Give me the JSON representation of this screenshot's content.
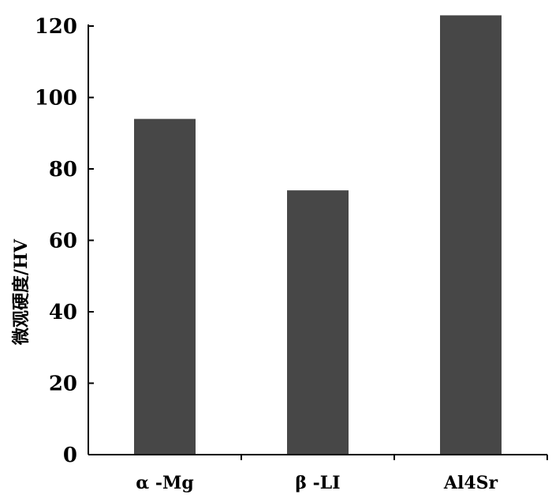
{
  "chart_data": {
    "type": "bar",
    "title": "",
    "xlabel": "",
    "ylabel": "微观硬度/HV",
    "categories": [
      "α -Mg",
      "β -LI",
      "Al4Sr"
    ],
    "values": [
      94,
      74,
      123
    ],
    "ylim": [
      0,
      120
    ],
    "yticks": [
      0,
      20,
      40,
      60,
      80,
      100,
      120
    ],
    "grid": false,
    "legend": "none",
    "bar_color": "#474747"
  }
}
